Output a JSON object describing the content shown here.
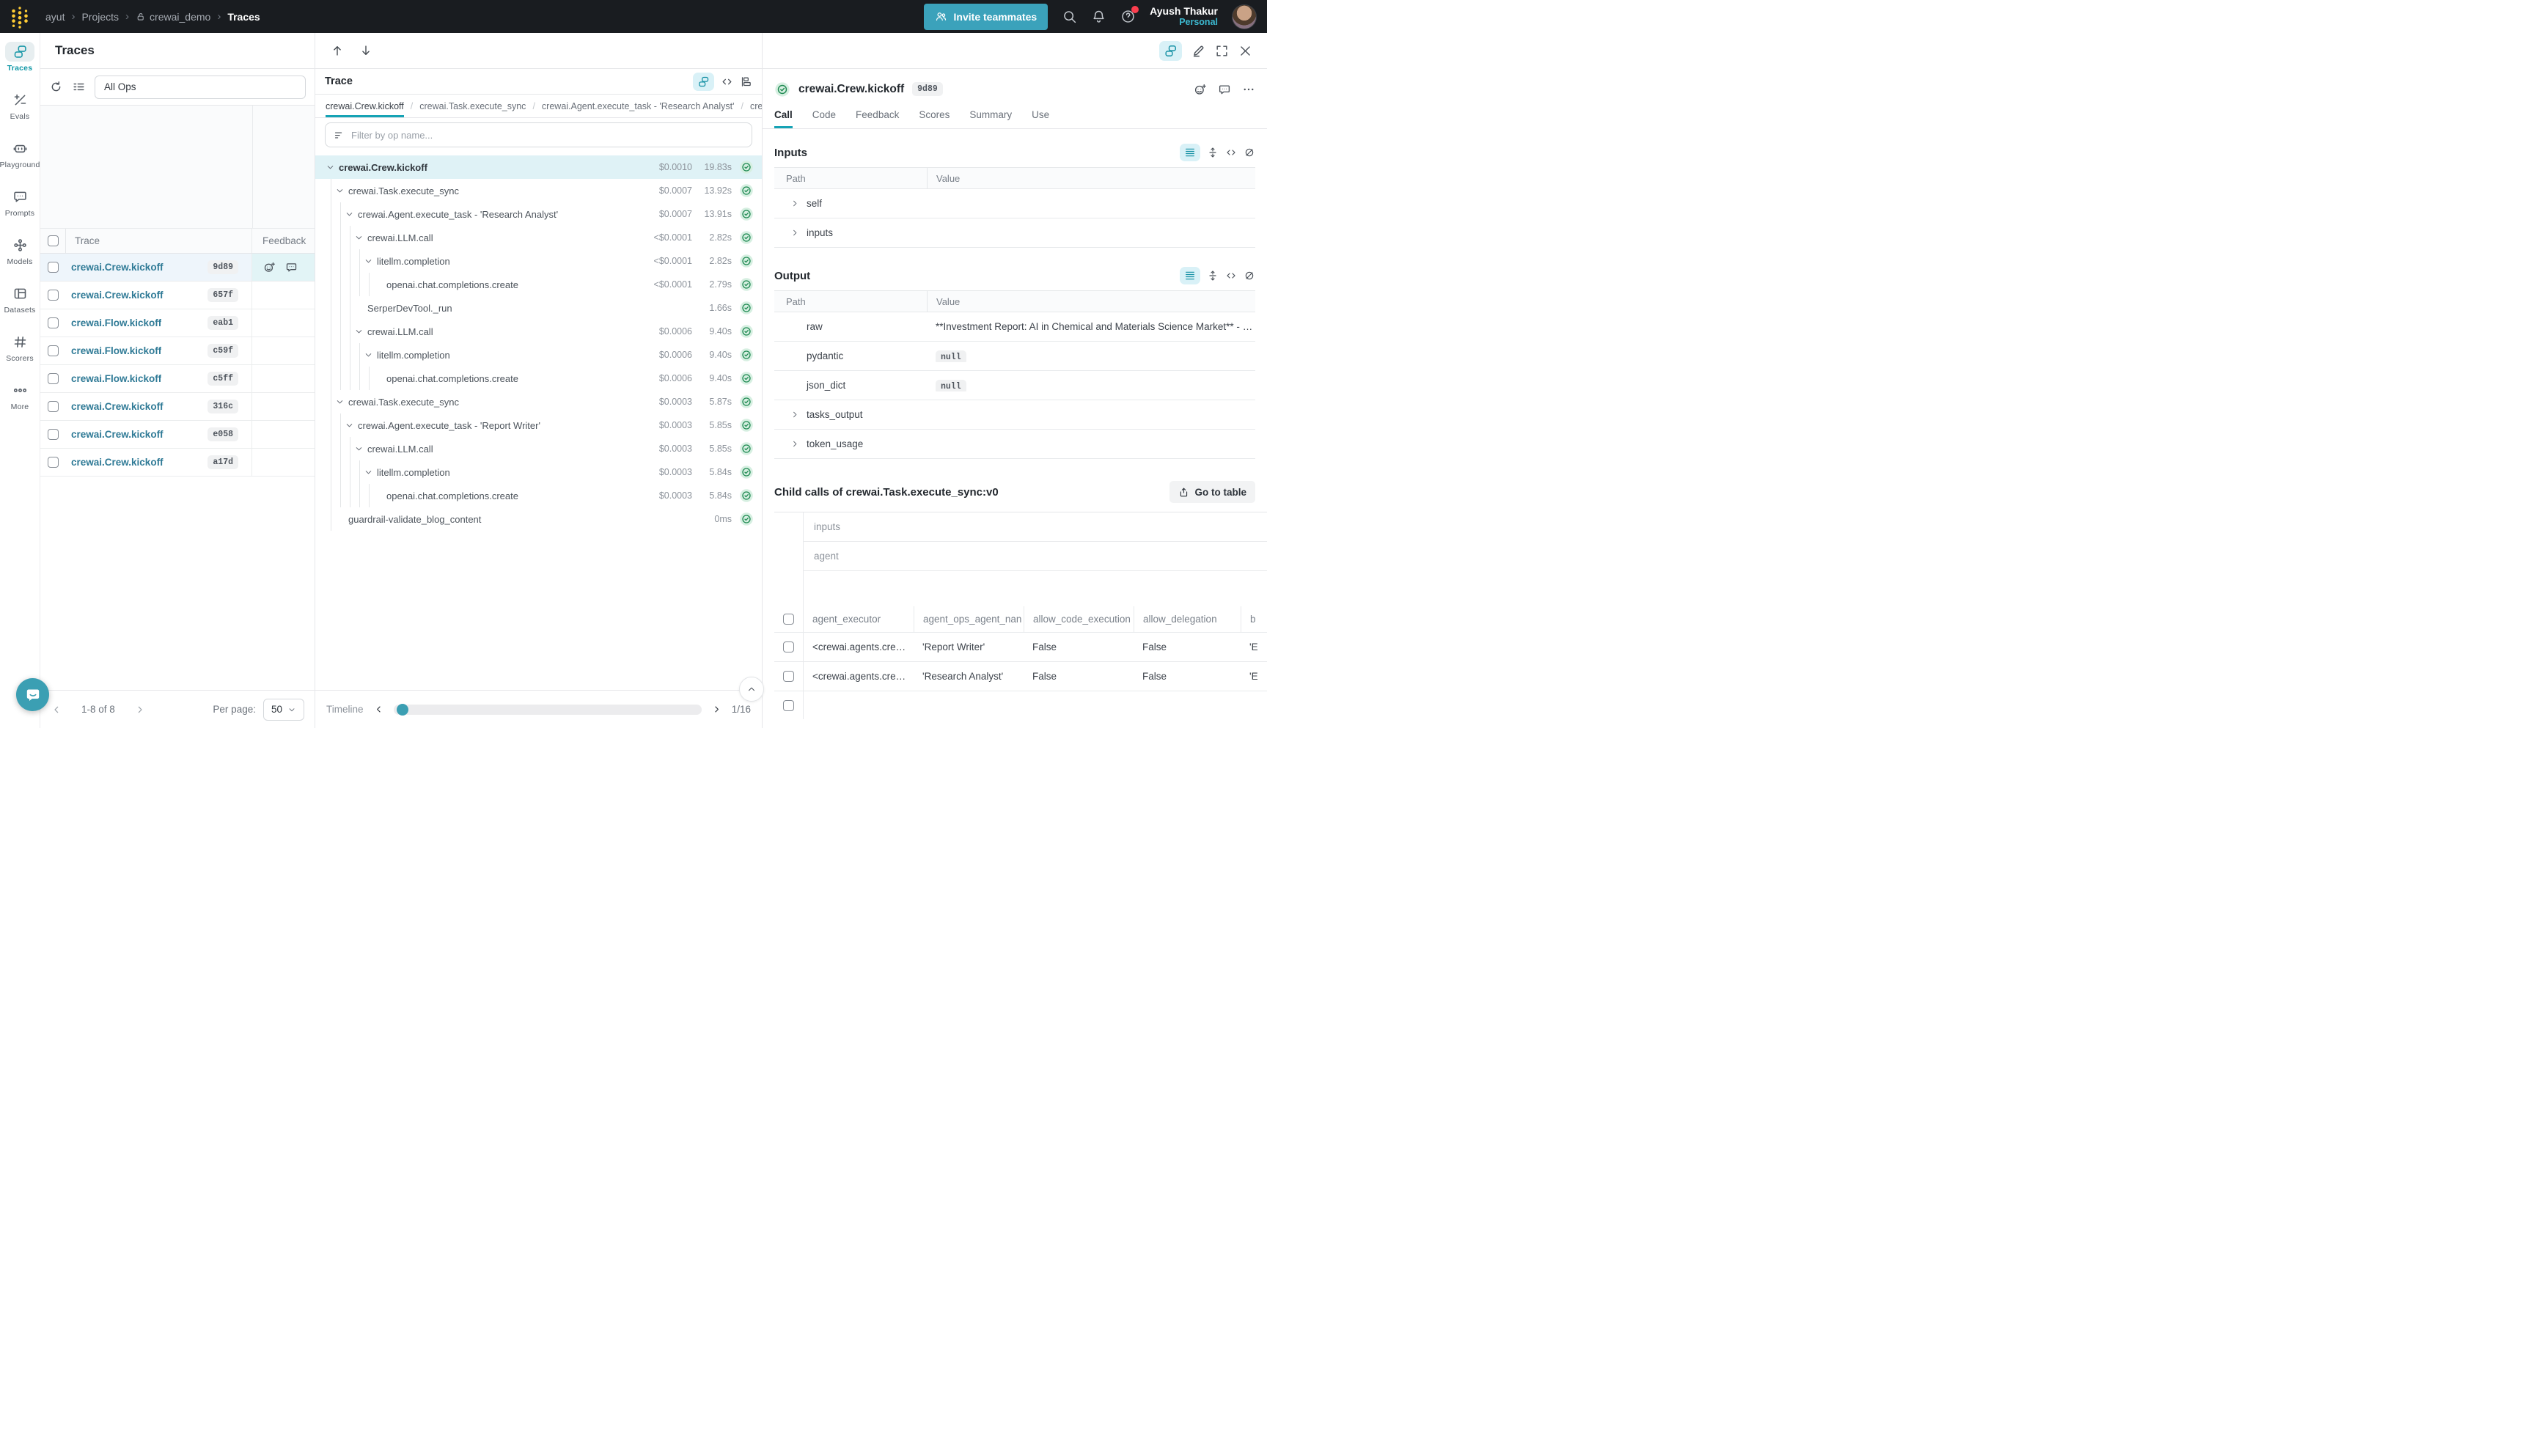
{
  "colors": {
    "accent_teal": "#13a9ba",
    "nav_bg": "#191c20",
    "link_teal": "#2f7a96",
    "success_green": "#1f8a52",
    "notification_red": "#fb3e4e"
  },
  "nav": {
    "breadcrumb": {
      "entity": "ayut",
      "section": "Projects",
      "project": "crewai_demo",
      "page": "Traces"
    },
    "invite_button": "Invite teammates",
    "user_name": "Ayush Thakur",
    "user_scope": "Personal"
  },
  "sidebar": {
    "items": [
      {
        "id": "traces",
        "label": "Traces",
        "active": true
      },
      {
        "id": "evals",
        "label": "Evals"
      },
      {
        "id": "playground",
        "label": "Playground"
      },
      {
        "id": "prompts",
        "label": "Prompts"
      },
      {
        "id": "models",
        "label": "Models"
      },
      {
        "id": "datasets",
        "label": "Datasets"
      },
      {
        "id": "scorers",
        "label": "Scorers"
      },
      {
        "id": "more",
        "label": "More"
      }
    ]
  },
  "traces_panel": {
    "title": "Traces",
    "ops_filter_value": "All Ops",
    "columns": {
      "trace": "Trace",
      "feedback": "Feedback"
    },
    "rows": [
      {
        "name": "crewai.Crew.kickoff",
        "id": "9d89",
        "selected": true,
        "has_feedback": true
      },
      {
        "name": "crewai.Crew.kickoff",
        "id": "657f"
      },
      {
        "name": "crewai.Flow.kickoff",
        "id": "eab1"
      },
      {
        "name": "crewai.Flow.kickoff",
        "id": "c59f"
      },
      {
        "name": "crewai.Flow.kickoff",
        "id": "c5ff"
      },
      {
        "name": "crewai.Crew.kickoff",
        "id": "316c"
      },
      {
        "name": "crewai.Crew.kickoff",
        "id": "e058"
      },
      {
        "name": "crewai.Crew.kickoff",
        "id": "a17d"
      }
    ],
    "pagination": {
      "range": "1-8 of 8",
      "per_page_label": "Per page:",
      "per_page": "50"
    }
  },
  "trace_panel": {
    "title": "Trace",
    "path_tabs": [
      {
        "label": "crewai.Crew.kickoff",
        "active": true
      },
      {
        "label": "crewai.Task.execute_sync"
      },
      {
        "label": "crewai.Agent.execute_task - 'Research Analyst'"
      },
      {
        "label": "crewai.LLM.cal"
      }
    ],
    "filter_placeholder": "Filter by op name...",
    "tree": [
      {
        "name": "crewai.Crew.kickoff",
        "cost": "$0.0010",
        "duration": "19.83s",
        "level": 0,
        "expandable": true,
        "selected": true
      },
      {
        "name": "crewai.Task.execute_sync",
        "cost": "$0.0007",
        "duration": "13.92s",
        "level": 1,
        "expandable": true
      },
      {
        "name": "crewai.Agent.execute_task - 'Research Analyst'",
        "cost": "$0.0007",
        "duration": "13.91s",
        "level": 2,
        "expandable": true
      },
      {
        "name": "crewai.LLM.call",
        "cost": "<$0.0001",
        "duration": "2.82s",
        "level": 3,
        "expandable": true
      },
      {
        "name": "litellm.completion",
        "cost": "<$0.0001",
        "duration": "2.82s",
        "level": 4,
        "expandable": true
      },
      {
        "name": "openai.chat.completions.create",
        "cost": "<$0.0001",
        "duration": "2.79s",
        "level": 5
      },
      {
        "name": "SerperDevTool._run",
        "cost": "",
        "duration": "1.66s",
        "level": 3
      },
      {
        "name": "crewai.LLM.call",
        "cost": "$0.0006",
        "duration": "9.40s",
        "level": 3,
        "expandable": true
      },
      {
        "name": "litellm.completion",
        "cost": "$0.0006",
        "duration": "9.40s",
        "level": 4,
        "expandable": true
      },
      {
        "name": "openai.chat.completions.create",
        "cost": "$0.0006",
        "duration": "9.40s",
        "level": 5
      },
      {
        "name": "crewai.Task.execute_sync",
        "cost": "$0.0003",
        "duration": "5.87s",
        "level": 1,
        "expandable": true
      },
      {
        "name": "crewai.Agent.execute_task - 'Report Writer'",
        "cost": "$0.0003",
        "duration": "5.85s",
        "level": 2,
        "expandable": true
      },
      {
        "name": "crewai.LLM.call",
        "cost": "$0.0003",
        "duration": "5.85s",
        "level": 3,
        "expandable": true
      },
      {
        "name": "litellm.completion",
        "cost": "$0.0003",
        "duration": "5.84s",
        "level": 4,
        "expandable": true
      },
      {
        "name": "openai.chat.completions.create",
        "cost": "$0.0003",
        "duration": "5.84s",
        "level": 5
      },
      {
        "name": "guardrail-validate_blog_content",
        "cost": "",
        "duration": "0ms",
        "level": 1
      }
    ],
    "timeline": {
      "label": "Timeline",
      "page": "1/16"
    }
  },
  "detail_panel": {
    "call_title": "crewai.Crew.kickoff",
    "call_id": "9d89",
    "tabs": [
      {
        "label": "Call",
        "active": true
      },
      {
        "label": "Code"
      },
      {
        "label": "Feedback"
      },
      {
        "label": "Scores"
      },
      {
        "label": "Summary"
      },
      {
        "label": "Use"
      }
    ],
    "table_columns": {
      "path": "Path",
      "value": "Value"
    },
    "inputs": {
      "heading": "Inputs",
      "rows": [
        {
          "path": "self",
          "expandable": true
        },
        {
          "path": "inputs",
          "expandable": true
        }
      ]
    },
    "output": {
      "heading": "Output",
      "rows": [
        {
          "path": "raw",
          "value": "**Investment Report: AI in Chemical and Materials Science Market** - **M…"
        },
        {
          "path": "pydantic",
          "value": "null",
          "is_code": true
        },
        {
          "path": "json_dict",
          "value": "null",
          "is_code": true
        },
        {
          "path": "tasks_output",
          "expandable": true
        },
        {
          "path": "token_usage",
          "expandable": true
        }
      ]
    },
    "child_calls": {
      "heading": "Child calls of crewai.Task.execute_sync:v0",
      "go_to_table": "Go to table",
      "group_headers": [
        "inputs",
        "agent"
      ],
      "columns": [
        "agent_executor",
        "agent_ops_agent_nan",
        "allow_code_execution",
        "allow_delegation",
        "b"
      ],
      "rows": [
        [
          "<crewai.agents.cre…",
          "'Report Writer'",
          "False",
          "False",
          "'E"
        ],
        [
          "<crewai.agents.cre…",
          "'Research Analyst'",
          "False",
          "False",
          "'E"
        ]
      ]
    }
  }
}
